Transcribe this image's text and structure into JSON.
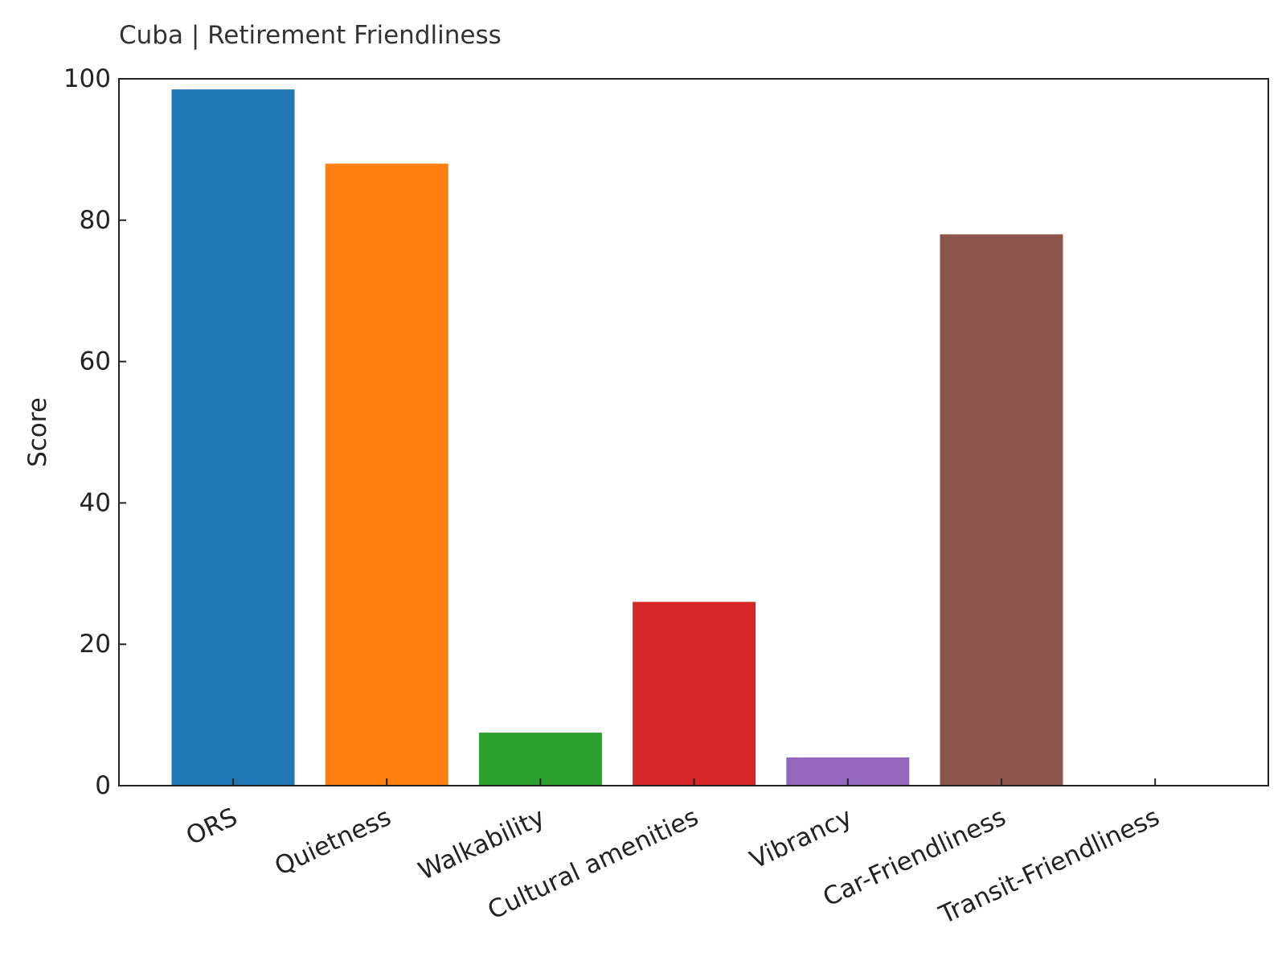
{
  "chart_data": {
    "type": "bar",
    "title": "Cuba | Retirement Friendliness",
    "xlabel": "",
    "ylabel": "Score",
    "categories": [
      "ORS",
      "Quietness",
      "Walkability",
      "Cultural amenities",
      "Vibrancy",
      "Car-Friendliness",
      "Transit-Friendliness"
    ],
    "values": [
      98.5,
      88,
      7.5,
      26,
      4,
      78,
      0
    ],
    "colors": [
      "#1f77b4",
      "#ff7f0e",
      "#2ca02c",
      "#d62728",
      "#9467bd",
      "#8c564b",
      "#e377c2"
    ],
    "ylim": [
      0,
      100
    ],
    "yticks": [
      0,
      20,
      40,
      60,
      80,
      100
    ],
    "grid": false,
    "legend": "none"
  }
}
